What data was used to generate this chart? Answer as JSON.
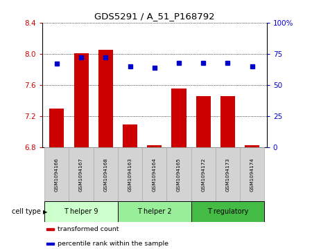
{
  "title": "GDS5291 / A_51_P168792",
  "samples": [
    "GSM1094166",
    "GSM1094167",
    "GSM1094168",
    "GSM1094163",
    "GSM1094164",
    "GSM1094165",
    "GSM1094172",
    "GSM1094173",
    "GSM1094174"
  ],
  "transformed_count": [
    7.3,
    8.01,
    8.05,
    7.1,
    6.83,
    7.56,
    7.46,
    7.46,
    6.83
  ],
  "percentile_rank": [
    67,
    72,
    72,
    65,
    64,
    68,
    68,
    68,
    65
  ],
  "ylim_left": [
    6.8,
    8.4
  ],
  "ylim_right": [
    0,
    100
  ],
  "yticks_left": [
    6.8,
    7.2,
    7.6,
    8.0,
    8.4
  ],
  "yticks_right": [
    0,
    25,
    50,
    75,
    100
  ],
  "ytick_labels_right": [
    "0",
    "25",
    "50",
    "75",
    "100%"
  ],
  "bar_color": "#cc0000",
  "dot_color": "#0000cc",
  "grid_color": "#000000",
  "cell_type_groups": [
    {
      "label": "T helper 9",
      "start": 0,
      "end": 3,
      "color": "#ccffcc"
    },
    {
      "label": "T helper 2",
      "start": 3,
      "end": 6,
      "color": "#99ee99"
    },
    {
      "label": "T regulatory",
      "start": 6,
      "end": 9,
      "color": "#44bb44"
    }
  ],
  "cell_type_label": "cell type",
  "legend_items": [
    {
      "label": "transformed count",
      "color": "#cc0000"
    },
    {
      "label": "percentile rank within the sample",
      "color": "#0000cc"
    }
  ],
  "bg_color": "#ffffff",
  "tick_color_left": "#cc0000",
  "tick_color_right": "#0000cc",
  "sample_box_color": "#d3d3d3",
  "sample_box_edge": "#aaaaaa"
}
